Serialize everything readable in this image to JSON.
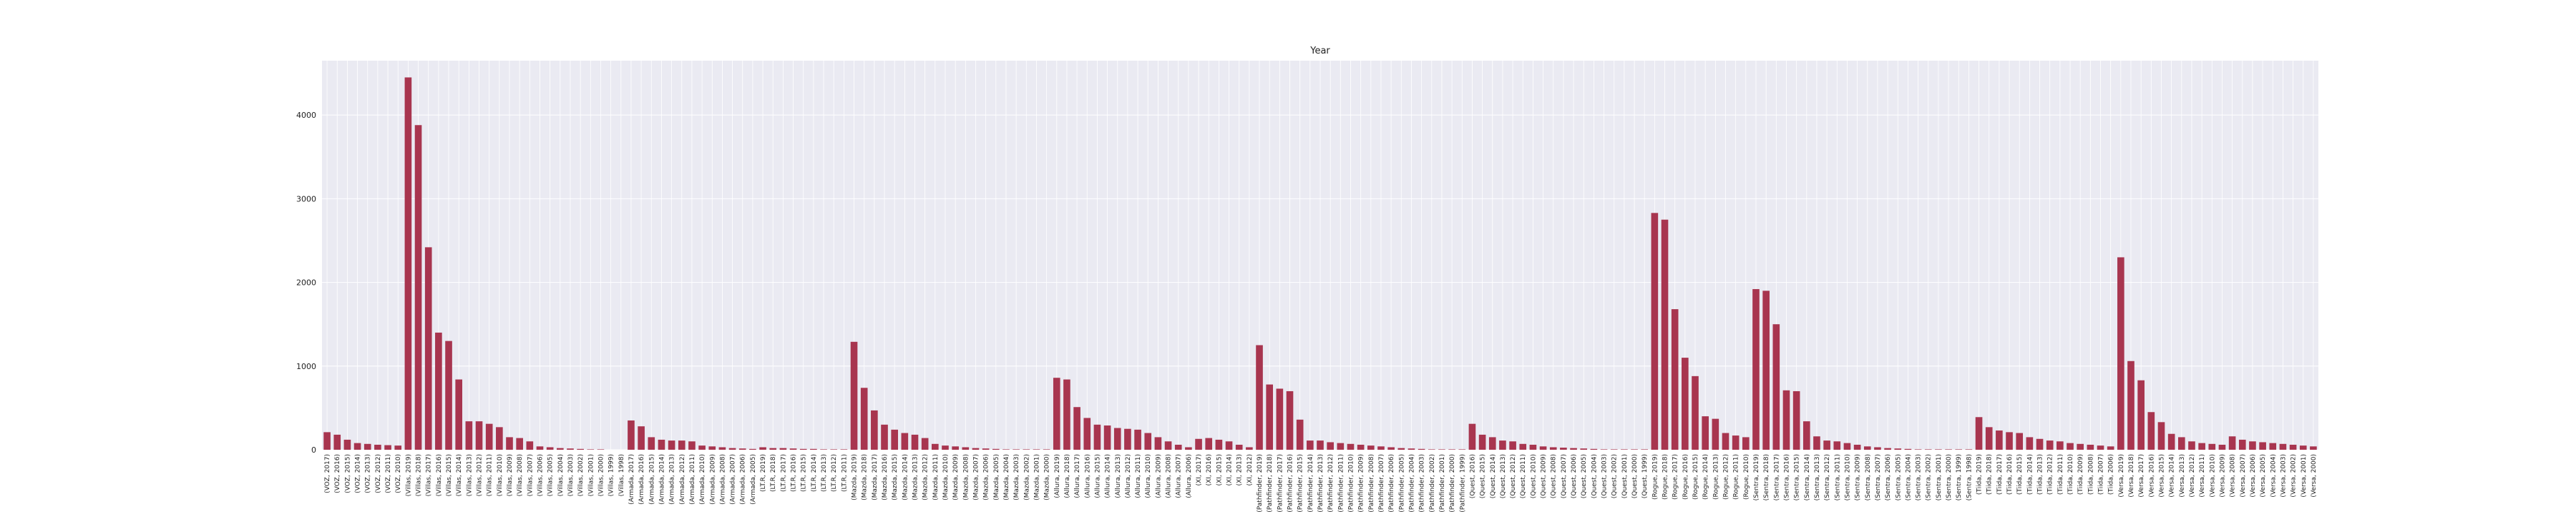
{
  "chart_data": {
    "type": "bar",
    "title": "Year",
    "xlabel": "",
    "ylabel": "",
    "ylim": [
      0,
      4650
    ],
    "yticks": [
      0,
      1000,
      2000,
      3000,
      4000
    ],
    "grid": true,
    "legend": "none",
    "colors": {
      "bar": "#a8354f",
      "plot_bg": "#eaeaf2",
      "grid": "#ffffff"
    },
    "categories": [
      "(VOZ, 2017)",
      "(VOZ, 2016)",
      "(VOZ, 2015)",
      "(VOZ, 2014)",
      "(VOZ, 2013)",
      "(VOZ, 2012)",
      "(VOZ, 2011)",
      "(VOZ, 2010)",
      "(Villas, 2019)",
      "(Villas, 2018)",
      "(Villas, 2017)",
      "(Villas, 2016)",
      "(Villas, 2015)",
      "(Villas, 2014)",
      "(Villas, 2013)",
      "(Villas, 2012)",
      "(Villas, 2011)",
      "(Villas, 2010)",
      "(Villas, 2009)",
      "(Villas, 2008)",
      "(Villas, 2007)",
      "(Villas, 2006)",
      "(Villas, 2005)",
      "(Villas, 2004)",
      "(Villas, 2003)",
      "(Villas, 2002)",
      "(Villas, 2001)",
      "(Villas, 2000)",
      "(Villas, 1999)",
      "(Villas, 1998)",
      "(Armada, 2017)",
      "(Armada, 2016)",
      "(Armada, 2015)",
      "(Armada, 2014)",
      "(Armada, 2013)",
      "(Armada, 2012)",
      "(Armada, 2011)",
      "(Armada, 2010)",
      "(Armada, 2009)",
      "(Armada, 2008)",
      "(Armada, 2007)",
      "(Armada, 2006)",
      "(Armada, 2005)",
      "(LT.R, 2019)",
      "(LT.R, 2018)",
      "(LT.R, 2017)",
      "(LT.R, 2016)",
      "(LT.R, 2015)",
      "(LT.R, 2014)",
      "(LT.R, 2013)",
      "(LT.R, 2012)",
      "(LT.R, 2011)",
      "(Mazda, 2019)",
      "(Mazda, 2018)",
      "(Mazda, 2017)",
      "(Mazda, 2016)",
      "(Mazda, 2015)",
      "(Mazda, 2014)",
      "(Mazda, 2013)",
      "(Mazda, 2012)",
      "(Mazda, 2011)",
      "(Mazda, 2010)",
      "(Mazda, 2009)",
      "(Mazda, 2008)",
      "(Mazda, 2007)",
      "(Mazda, 2006)",
      "(Mazda, 2005)",
      "(Mazda, 2004)",
      "(Mazda, 2003)",
      "(Mazda, 2002)",
      "(Mazda, 2001)",
      "(Mazda, 2000)",
      "(Allura, 2019)",
      "(Allura, 2018)",
      "(Allura, 2017)",
      "(Allura, 2016)",
      "(Allura, 2015)",
      "(Allura, 2014)",
      "(Allura, 2013)",
      "(Allura, 2012)",
      "(Allura, 2011)",
      "(Allura, 2010)",
      "(Allura, 2009)",
      "(Allura, 2008)",
      "(Allura, 2007)",
      "(Allura, 2006)",
      "(XI, 2017)",
      "(XI, 2016)",
      "(XI, 2015)",
      "(XI, 2014)",
      "(XI, 2013)",
      "(XI, 2012)",
      "(Pathfinder, 2019)",
      "(Pathfinder, 2018)",
      "(Pathfinder, 2017)",
      "(Pathfinder, 2016)",
      "(Pathfinder, 2015)",
      "(Pathfinder, 2014)",
      "(Pathfinder, 2013)",
      "(Pathfinder, 2012)",
      "(Pathfinder, 2011)",
      "(Pathfinder, 2010)",
      "(Pathfinder, 2009)",
      "(Pathfinder, 2008)",
      "(Pathfinder, 2007)",
      "(Pathfinder, 2006)",
      "(Pathfinder, 2005)",
      "(Pathfinder, 2004)",
      "(Pathfinder, 2003)",
      "(Pathfinder, 2002)",
      "(Pathfinder, 2001)",
      "(Pathfinder, 2000)",
      "(Pathfinder, 1999)",
      "(Quest, 2016)",
      "(Quest, 2015)",
      "(Quest, 2014)",
      "(Quest, 2013)",
      "(Quest, 2012)",
      "(Quest, 2011)",
      "(Quest, 2010)",
      "(Quest, 2009)",
      "(Quest, 2008)",
      "(Quest, 2007)",
      "(Quest, 2006)",
      "(Quest, 2005)",
      "(Quest, 2004)",
      "(Quest, 2003)",
      "(Quest, 2002)",
      "(Quest, 2001)",
      "(Quest, 2000)",
      "(Quest, 1999)",
      "(Rogue, 2019)",
      "(Rogue, 2018)",
      "(Rogue, 2017)",
      "(Rogue, 2016)",
      "(Rogue, 2015)",
      "(Rogue, 2014)",
      "(Rogue, 2013)",
      "(Rogue, 2012)",
      "(Rogue, 2011)",
      "(Rogue, 2010)",
      "(Sentra, 2019)",
      "(Sentra, 2018)",
      "(Sentra, 2017)",
      "(Sentra, 2016)",
      "(Sentra, 2015)",
      "(Sentra, 2014)",
      "(Sentra, 2013)",
      "(Sentra, 2012)",
      "(Sentra, 2011)",
      "(Sentra, 2010)",
      "(Sentra, 2009)",
      "(Sentra, 2008)",
      "(Sentra, 2007)",
      "(Sentra, 2006)",
      "(Sentra, 2005)",
      "(Sentra, 2004)",
      "(Sentra, 2003)",
      "(Sentra, 2002)",
      "(Sentra, 2001)",
      "(Sentra, 2000)",
      "(Sentra, 1999)",
      "(Sentra, 1998)",
      "(Tiida, 2019)",
      "(Tiida, 2018)",
      "(Tiida, 2017)",
      "(Tiida, 2016)",
      "(Tiida, 2015)",
      "(Tiida, 2014)",
      "(Tiida, 2013)",
      "(Tiida, 2012)",
      "(Tiida, 2011)",
      "(Tiida, 2010)",
      "(Tiida, 2009)",
      "(Tiida, 2008)",
      "(Tiida, 2007)",
      "(Tiida, 2006)",
      "(Versa, 2019)",
      "(Versa, 2018)",
      "(Versa, 2017)",
      "(Versa, 2016)",
      "(Versa, 2015)",
      "(Versa, 2014)",
      "(Versa, 2013)",
      "(Versa, 2012)",
      "(Versa, 2011)",
      "(Versa, 2010)",
      "(Versa, 2009)",
      "(Versa, 2008)",
      "(Versa, 2007)",
      "(Versa, 2006)",
      "(Versa, 2005)",
      "(Versa, 2004)",
      "(Versa, 2003)",
      "(Versa, 2002)",
      "(Versa, 2001)",
      "(Versa, 2000)"
    ],
    "values": [
      210,
      180,
      120,
      80,
      70,
      60,
      55,
      50,
      4450,
      3880,
      2420,
      1400,
      1300,
      840,
      340,
      340,
      310,
      270,
      150,
      140,
      100,
      40,
      30,
      20,
      15,
      10,
      5,
      5,
      0,
      0,
      350,
      280,
      150,
      120,
      110,
      110,
      100,
      50,
      40,
      30,
      20,
      15,
      10,
      30,
      20,
      20,
      15,
      10,
      10,
      5,
      5,
      5,
      1290,
      740,
      470,
      300,
      240,
      200,
      180,
      140,
      70,
      50,
      40,
      30,
      20,
      15,
      10,
      5,
      5,
      5,
      5,
      5,
      860,
      840,
      510,
      380,
      300,
      290,
      260,
      250,
      240,
      200,
      150,
      100,
      60,
      30,
      130,
      140,
      120,
      100,
      60,
      30,
      1250,
      780,
      730,
      700,
      360,
      110,
      110,
      90,
      80,
      70,
      60,
      50,
      40,
      30,
      20,
      15,
      10,
      5,
      5,
      5,
      5,
      310,
      180,
      150,
      110,
      100,
      70,
      60,
      40,
      30,
      25,
      20,
      15,
      10,
      5,
      5,
      5,
      5,
      5,
      2830,
      2750,
      1680,
      1100,
      880,
      400,
      370,
      200,
      170,
      150,
      1920,
      1900,
      1500,
      710,
      700,
      340,
      160,
      110,
      100,
      80,
      60,
      40,
      30,
      20,
      15,
      10,
      5,
      5,
      5,
      5,
      5,
      5,
      390,
      270,
      230,
      210,
      200,
      150,
      130,
      110,
      100,
      80,
      70,
      60,
      50,
      40,
      2300,
      1060,
      830,
      450,
      330,
      190,
      150,
      100,
      80,
      70,
      60,
      160,
      120,
      100,
      90,
      80,
      70,
      60,
      50,
      40
    ]
  }
}
